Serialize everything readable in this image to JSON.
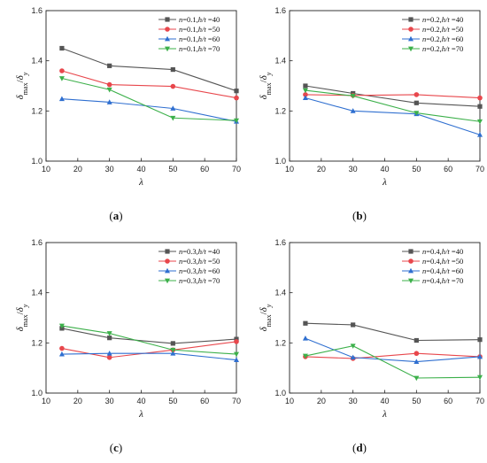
{
  "chart_data": [
    {
      "type": "line",
      "panel_label": "a",
      "xlabel": "λ",
      "ylabel_main": "δ",
      "ylabel_num_sub": "max",
      "ylabel_den_sub": "y",
      "xlim": [
        10,
        70
      ],
      "ylim": [
        1.0,
        1.6
      ],
      "xticks": [
        "10",
        "20",
        "30",
        "40",
        "50",
        "60",
        "70"
      ],
      "yticks": [
        "1.0",
        "1.2",
        "1.4",
        "1.6"
      ],
      "x": [
        15,
        30,
        50,
        70
      ],
      "legend_position": "top-right",
      "series": [
        {
          "name": "n=0.1,h/t =40",
          "n": "0.1",
          "ht": "40",
          "color": "#555555",
          "marker": "square",
          "values": [
            1.45,
            1.38,
            1.365,
            1.28
          ]
        },
        {
          "name": "n=0.1,h/t =50",
          "n": "0.1",
          "ht": "50",
          "color": "#e8474c",
          "marker": "circle",
          "values": [
            1.36,
            1.305,
            1.298,
            1.252
          ]
        },
        {
          "name": "n=0.1,h/t =60",
          "n": "0.1",
          "ht": "60",
          "color": "#2f6fd0",
          "marker": "triangle-up",
          "values": [
            1.248,
            1.235,
            1.21,
            1.158
          ]
        },
        {
          "name": "n=0.1,h/t =70",
          "n": "0.1",
          "ht": "70",
          "color": "#3cb04a",
          "marker": "triangle-down",
          "values": [
            1.33,
            1.285,
            1.172,
            1.162
          ]
        }
      ]
    },
    {
      "type": "line",
      "panel_label": "b",
      "xlabel": "λ",
      "ylabel_main": "δ",
      "ylabel_num_sub": "max",
      "ylabel_den_sub": "y",
      "xlim": [
        10,
        70
      ],
      "ylim": [
        1.0,
        1.6
      ],
      "xticks": [
        "10",
        "20",
        "30",
        "40",
        "50",
        "60",
        "70"
      ],
      "yticks": [
        "1.0",
        "1.2",
        "1.4",
        "1.6"
      ],
      "x": [
        15,
        30,
        50,
        70
      ],
      "legend_position": "top-right",
      "series": [
        {
          "name": "n=0.2,h/t =40",
          "n": "0.2",
          "ht": "40",
          "color": "#555555",
          "marker": "square",
          "values": [
            1.3,
            1.27,
            1.232,
            1.218
          ]
        },
        {
          "name": "n=0.2,h/t =50",
          "n": "0.2",
          "ht": "50",
          "color": "#e8474c",
          "marker": "circle",
          "values": [
            1.265,
            1.262,
            1.265,
            1.252
          ]
        },
        {
          "name": "n=0.2,h/t =60",
          "n": "0.2",
          "ht": "60",
          "color": "#2f6fd0",
          "marker": "triangle-up",
          "values": [
            1.252,
            1.2,
            1.188,
            1.105
          ]
        },
        {
          "name": "n=0.2,h/t =70",
          "n": "0.2",
          "ht": "70",
          "color": "#3cb04a",
          "marker": "triangle-down",
          "values": [
            1.282,
            1.26,
            1.192,
            1.158
          ]
        }
      ]
    },
    {
      "type": "line",
      "panel_label": "c",
      "xlabel": "λ",
      "ylabel_main": "δ",
      "ylabel_num_sub": "max",
      "ylabel_den_sub": "y",
      "xlim": [
        10,
        70
      ],
      "ylim": [
        1.0,
        1.6
      ],
      "xticks": [
        "10",
        "20",
        "30",
        "40",
        "50",
        "60",
        "70"
      ],
      "yticks": [
        "1.0",
        "1.2",
        "1.4",
        "1.6"
      ],
      "x": [
        15,
        30,
        50,
        70
      ],
      "legend_position": "top-right",
      "series": [
        {
          "name": "n=0.3,h/t =40",
          "n": "0.3",
          "ht": "40",
          "color": "#555555",
          "marker": "square",
          "values": [
            1.258,
            1.22,
            1.198,
            1.215
          ]
        },
        {
          "name": "n=0.3,h/t =50",
          "n": "0.3",
          "ht": "50",
          "color": "#e8474c",
          "marker": "circle",
          "values": [
            1.178,
            1.142,
            1.172,
            1.205
          ]
        },
        {
          "name": "n=0.3,h/t =60",
          "n": "0.3",
          "ht": "60",
          "color": "#2f6fd0",
          "marker": "triangle-up",
          "values": [
            1.155,
            1.158,
            1.158,
            1.132
          ]
        },
        {
          "name": "n=0.3,h/t =70",
          "n": "0.3",
          "ht": "70",
          "color": "#3cb04a",
          "marker": "triangle-down",
          "values": [
            1.268,
            1.238,
            1.172,
            1.155
          ]
        }
      ]
    },
    {
      "type": "line",
      "panel_label": "d",
      "xlabel": "λ",
      "ylabel_main": "δ",
      "ylabel_num_sub": "max",
      "ylabel_den_sub": "y",
      "xlim": [
        10,
        70
      ],
      "ylim": [
        1.0,
        1.6
      ],
      "xticks": [
        "10",
        "20",
        "30",
        "40",
        "50",
        "60",
        "70"
      ],
      "yticks": [
        "1.0",
        "1.2",
        "1.4",
        "1.6"
      ],
      "x": [
        15,
        30,
        50,
        70
      ],
      "legend_position": "top-right",
      "series": [
        {
          "name": "n=0.4,h/t =40",
          "n": "0.4",
          "ht": "40",
          "color": "#555555",
          "marker": "square",
          "values": [
            1.278,
            1.272,
            1.21,
            1.213
          ]
        },
        {
          "name": "n=0.4,h/t =50",
          "n": "0.4",
          "ht": "50",
          "color": "#e8474c",
          "marker": "circle",
          "values": [
            1.145,
            1.138,
            1.158,
            1.145
          ]
        },
        {
          "name": "n=0.4,h/t =60",
          "n": "0.4",
          "ht": "60",
          "color": "#2f6fd0",
          "marker": "triangle-up",
          "values": [
            1.218,
            1.142,
            1.125,
            1.145
          ]
        },
        {
          "name": "n=0.4,h/t =70",
          "n": "0.4",
          "ht": "70",
          "color": "#3cb04a",
          "marker": "triangle-down",
          "values": [
            1.148,
            1.188,
            1.06,
            1.063
          ]
        }
      ]
    }
  ]
}
